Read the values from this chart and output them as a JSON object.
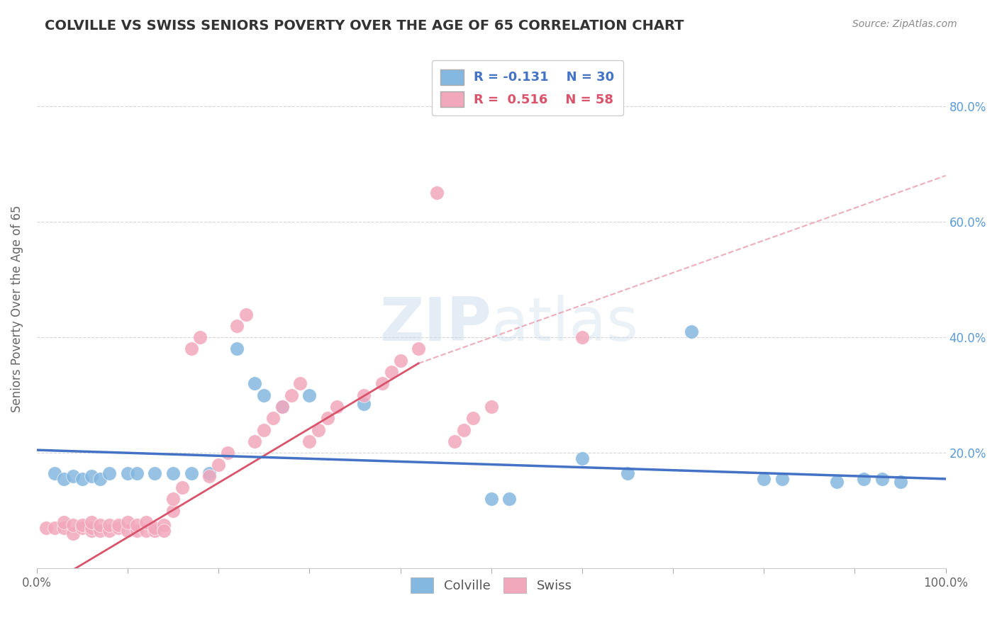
{
  "title": "COLVILLE VS SWISS SENIORS POVERTY OVER THE AGE OF 65 CORRELATION CHART",
  "source": "Source: ZipAtlas.com",
  "ylabel": "Seniors Poverty Over the Age of 65",
  "xlim": [
    0,
    1
  ],
  "ylim": [
    0,
    0.9
  ],
  "x_ticks": [
    0.0,
    0.1,
    0.2,
    0.3,
    0.4,
    0.5,
    0.6,
    0.7,
    0.8,
    0.9,
    1.0
  ],
  "y_ticks_right": [
    0.2,
    0.4,
    0.6,
    0.8
  ],
  "y_tick_labels_right": [
    "20.0%",
    "40.0%",
    "60.0%",
    "80.0%"
  ],
  "legend_r_colville": "R = -0.131",
  "legend_n_colville": "N = 30",
  "legend_r_swiss": "R =  0.516",
  "legend_n_swiss": "N = 58",
  "colville_color": "#85b8e0",
  "swiss_color": "#f2a8bc",
  "colville_line_color": "#4472c4",
  "swiss_line_color": "#d9536a",
  "dashed_line_color": "#e8a0b0",
  "colville_points_x": [
    0.02,
    0.03,
    0.04,
    0.05,
    0.06,
    0.07,
    0.08,
    0.1,
    0.11,
    0.13,
    0.15,
    0.17,
    0.19,
    0.22,
    0.24,
    0.25,
    0.27,
    0.3,
    0.36,
    0.5,
    0.52,
    0.6,
    0.65,
    0.72,
    0.8,
    0.82,
    0.88,
    0.91,
    0.93,
    0.95
  ],
  "colville_points_y": [
    0.165,
    0.155,
    0.16,
    0.155,
    0.16,
    0.155,
    0.165,
    0.165,
    0.165,
    0.165,
    0.165,
    0.165,
    0.165,
    0.38,
    0.32,
    0.3,
    0.28,
    0.3,
    0.285,
    0.12,
    0.12,
    0.19,
    0.165,
    0.41,
    0.155,
    0.155,
    0.15,
    0.155,
    0.155,
    0.15
  ],
  "swiss_points_x": [
    0.01,
    0.02,
    0.03,
    0.03,
    0.04,
    0.04,
    0.05,
    0.05,
    0.06,
    0.06,
    0.06,
    0.07,
    0.07,
    0.08,
    0.08,
    0.09,
    0.09,
    0.1,
    0.1,
    0.11,
    0.11,
    0.12,
    0.12,
    0.13,
    0.13,
    0.14,
    0.14,
    0.15,
    0.15,
    0.16,
    0.17,
    0.18,
    0.19,
    0.2,
    0.21,
    0.22,
    0.23,
    0.24,
    0.25,
    0.26,
    0.27,
    0.28,
    0.29,
    0.3,
    0.31,
    0.32,
    0.33,
    0.36,
    0.38,
    0.39,
    0.4,
    0.42,
    0.44,
    0.46,
    0.47,
    0.48,
    0.5,
    0.6
  ],
  "swiss_points_y": [
    0.07,
    0.07,
    0.07,
    0.08,
    0.06,
    0.075,
    0.07,
    0.075,
    0.065,
    0.07,
    0.08,
    0.065,
    0.075,
    0.065,
    0.075,
    0.07,
    0.075,
    0.065,
    0.08,
    0.065,
    0.075,
    0.065,
    0.08,
    0.065,
    0.07,
    0.075,
    0.065,
    0.1,
    0.12,
    0.14,
    0.38,
    0.4,
    0.16,
    0.18,
    0.2,
    0.42,
    0.44,
    0.22,
    0.24,
    0.26,
    0.28,
    0.3,
    0.32,
    0.22,
    0.24,
    0.26,
    0.28,
    0.3,
    0.32,
    0.34,
    0.36,
    0.38,
    0.65,
    0.22,
    0.24,
    0.26,
    0.28,
    0.4
  ],
  "colville_trend": [
    0.0,
    1.0,
    0.205,
    0.155
  ],
  "swiss_trend_solid": [
    0.0,
    0.42,
    -0.04,
    0.355
  ],
  "swiss_trend_dashed": [
    0.42,
    1.0,
    0.355,
    0.68
  ],
  "background_color": "#ffffff",
  "grid_color": "#cccccc",
  "title_color": "#333333",
  "title_fontsize": 14,
  "axis_label_fontsize": 12
}
